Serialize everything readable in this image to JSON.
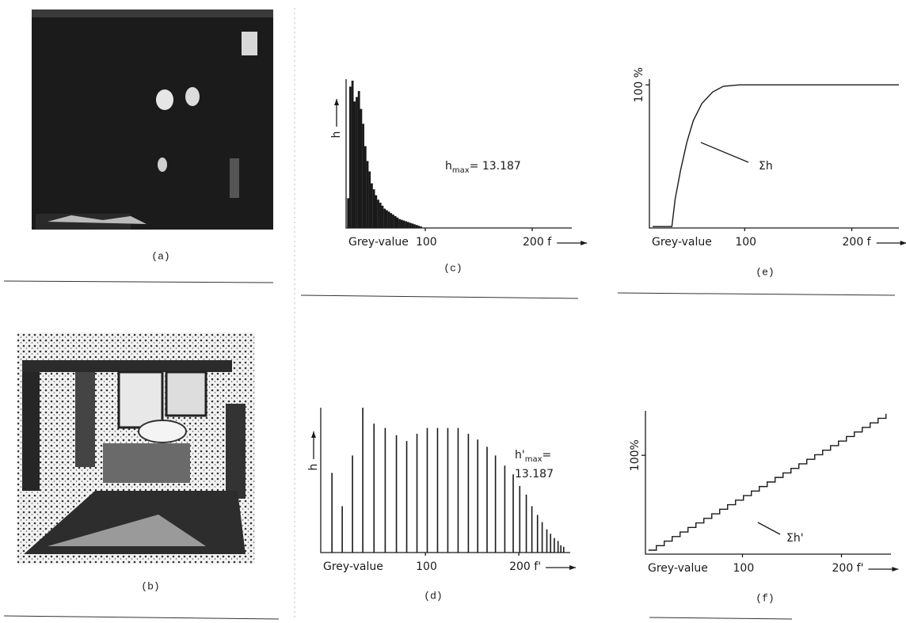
{
  "figures": [
    {
      "caption": "(a)"
    },
    {
      "caption": "(b)"
    }
  ],
  "chart_data": [
    {
      "type": "bar",
      "caption": "(c)",
      "xlabel": "Grey-value",
      "ylabel": "h",
      "color": "#1a1a1a",
      "annotation": {
        "symbol": "h",
        "subscript": "max",
        "text": "= 13.187"
      },
      "xlim": [
        26,
        237
      ],
      "xticks": [
        100,
        {
          "value": 200,
          "label": "200 f"
        }
      ],
      "ylim": [
        0,
        100
      ],
      "x": [
        28,
        30,
        32,
        34,
        36,
        38,
        40,
        42,
        44,
        46,
        48,
        50,
        52,
        54,
        56,
        58,
        60,
        62,
        64,
        66,
        68,
        70,
        72,
        74,
        76,
        78,
        80,
        82,
        84,
        86,
        88,
        90,
        92,
        94,
        96
      ],
      "values": [
        20,
        95,
        99,
        85,
        88,
        92,
        80,
        70,
        55,
        45,
        38,
        30,
        26,
        22,
        19,
        17,
        15,
        13,
        12,
        11,
        10,
        9,
        8,
        7,
        6,
        5.5,
        5,
        4.5,
        4,
        3.5,
        3,
        2.5,
        2,
        1.5,
        1
      ]
    },
    {
      "type": "bar",
      "caption": "(d)",
      "xlabel": "Grey-value",
      "ylabel": "h",
      "color": "#1a1a1a",
      "annotation": {
        "symbol": "h'",
        "subscript": "max",
        "text": "=",
        "line2": "13.187"
      },
      "xlim": [
        -12,
        255
      ],
      "xticks": [
        100,
        {
          "value": 200,
          "label": "200 f'"
        }
      ],
      "ylim": [
        0,
        100
      ],
      "x": [
        0,
        11,
        22,
        33,
        45,
        57,
        69,
        80,
        91,
        102,
        113,
        124,
        135,
        146,
        156,
        166,
        175,
        185,
        194,
        201,
        208,
        214,
        220,
        225,
        230,
        234,
        238,
        242,
        245,
        248
      ],
      "values": [
        55,
        32,
        67,
        100,
        89,
        86,
        81,
        77,
        82,
        86,
        86,
        86,
        86,
        82,
        78,
        73,
        67,
        60,
        54,
        46,
        40,
        32,
        26,
        21,
        16,
        13,
        10,
        8,
        5,
        4
      ]
    },
    {
      "type": "line",
      "caption": "(e)",
      "xlabel": "Grey-value",
      "callout": "Σh",
      "color": "#1a1a1a",
      "xlim": [
        11,
        244
      ],
      "xticks": [
        100,
        {
          "value": 200,
          "label": "200 f"
        }
      ],
      "ylim": [
        0,
        104
      ],
      "yticks": [
        {
          "value": 100,
          "label": "100 %"
        }
      ],
      "x": [
        14,
        32,
        35,
        40,
        46,
        52,
        60,
        70,
        80,
        95,
        244
      ],
      "values": [
        1,
        1,
        20,
        40,
        60,
        75,
        87,
        95,
        99,
        100,
        100
      ]
    },
    {
      "type": "line",
      "step": true,
      "caption": "(f)",
      "xlabel": "Grey-value",
      "callout": "Σh'",
      "color": "#1a1a1a",
      "xlim": [
        2,
        250
      ],
      "xticks": [
        100,
        {
          "value": 200,
          "label": "200 f'"
        }
      ],
      "ylim": [
        0,
        145
      ],
      "yticks": [
        {
          "value": 100,
          "label": "100%"
        }
      ],
      "x": [
        5,
        13,
        21,
        29,
        37,
        45,
        53,
        61,
        69,
        77,
        85,
        93,
        101,
        109,
        117,
        125,
        133,
        141,
        149,
        157,
        165,
        173,
        181,
        189,
        197,
        205,
        213,
        221,
        229,
        237,
        245
      ],
      "values": [
        4,
        8.6,
        13.2,
        17.8,
        22.4,
        27,
        31.6,
        36.2,
        40.8,
        45.4,
        50,
        54.6,
        59.2,
        63.8,
        68.4,
        73,
        77.6,
        82.2,
        86.8,
        91.4,
        96,
        100.6,
        105.2,
        109.8,
        114.4,
        119,
        123.6,
        128.2,
        132.8,
        137.4,
        142
      ]
    }
  ]
}
